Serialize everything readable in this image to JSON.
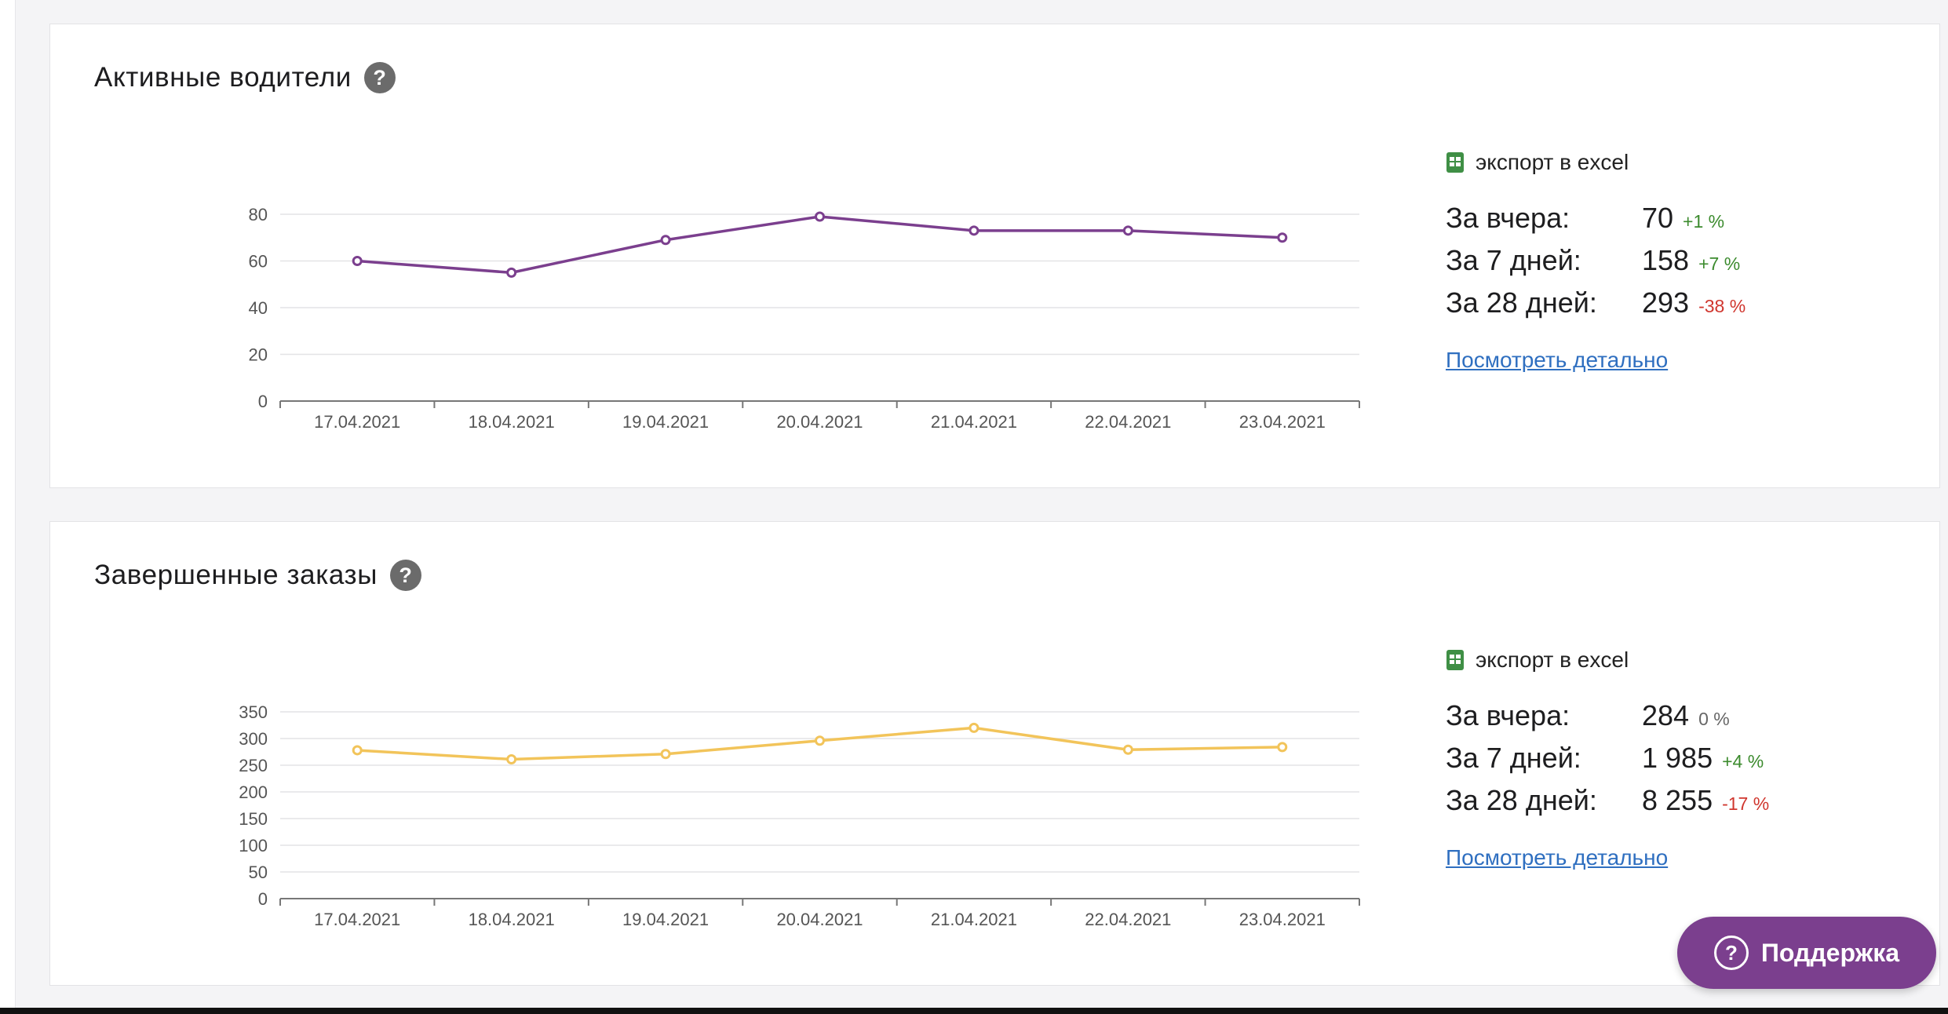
{
  "cards": [
    {
      "title": "Активные водители",
      "help_icon": "question-circle-icon",
      "export_label": "экспорт в excel",
      "export_icon": "excel-icon",
      "stats": [
        {
          "label": "За вчера:",
          "value": "70",
          "delta": "+1 %",
          "delta_color": "#3c8b2e"
        },
        {
          "label": "За 7 дней:",
          "value": "158",
          "delta": "+7 %",
          "delta_color": "#3c8b2e"
        },
        {
          "label": "За 28 дней:",
          "value": "293",
          "delta": "-38 %",
          "delta_color": "#d0362e"
        }
      ],
      "detail_link": "Посмотреть детально"
    },
    {
      "title": "Завершенные заказы",
      "help_icon": "question-circle-icon",
      "export_label": "экспорт в excel",
      "export_icon": "excel-icon",
      "stats": [
        {
          "label": "За вчера:",
          "value": "284",
          "delta": "0 %",
          "delta_color": "#666666"
        },
        {
          "label": "За 7 дней:",
          "value": "1 985",
          "delta": "+4 %",
          "delta_color": "#3c8b2e"
        },
        {
          "label": "За 28 дней:",
          "value": "8 255",
          "delta": "-17 %",
          "delta_color": "#d0362e"
        }
      ],
      "detail_link": "Посмотреть детально"
    }
  ],
  "chart_data": [
    {
      "type": "line",
      "x": [
        "17.04.2021",
        "18.04.2021",
        "19.04.2021",
        "20.04.2021",
        "21.04.2021",
        "22.04.2021",
        "23.04.2021"
      ],
      "series": [
        {
          "values": [
            60,
            55,
            69,
            79,
            73,
            73,
            70
          ],
          "color": "#7b3f8e"
        }
      ],
      "ylim": [
        0,
        80
      ],
      "yticks": [
        0,
        20,
        40,
        60,
        80
      ],
      "grid": true
    },
    {
      "type": "line",
      "x": [
        "17.04.2021",
        "18.04.2021",
        "19.04.2021",
        "20.04.2021",
        "21.04.2021",
        "22.04.2021",
        "23.04.2021"
      ],
      "series": [
        {
          "values": [
            278,
            261,
            271,
            296,
            320,
            279,
            284
          ],
          "color": "#f2c45a"
        }
      ],
      "ylim": [
        0,
        350
      ],
      "yticks": [
        0,
        50,
        100,
        150,
        200,
        250,
        300,
        350
      ],
      "grid": true
    }
  ],
  "support_button": {
    "label": "Поддержка",
    "icon": "question-circle-icon"
  }
}
